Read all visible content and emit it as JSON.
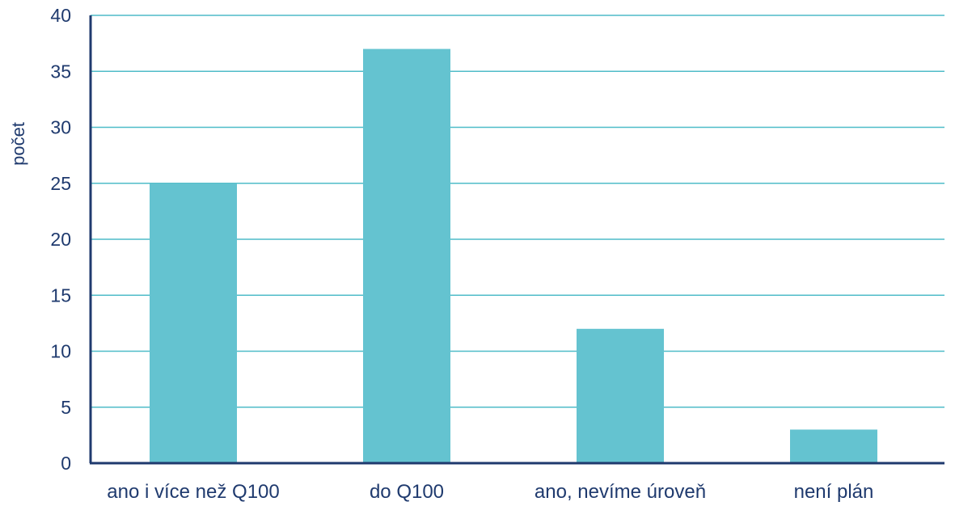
{
  "chart_data": {
    "type": "bar",
    "title": "",
    "xlabel": "",
    "ylabel": "počet",
    "categories": [
      "ano i více než Q100",
      "do Q100",
      "ano, nevíme úroveň",
      "není plán"
    ],
    "values": [
      25,
      37,
      12,
      3
    ],
    "ylim": [
      0,
      40
    ],
    "yticks": [
      0,
      5,
      10,
      15,
      20,
      25,
      30,
      35,
      40
    ],
    "grid": true,
    "legend": "none",
    "colors": {
      "bar": "#64c3d0",
      "grid": "#4fbcc8",
      "axis": "#1f3a6e",
      "text": "#1f3a6e"
    }
  }
}
